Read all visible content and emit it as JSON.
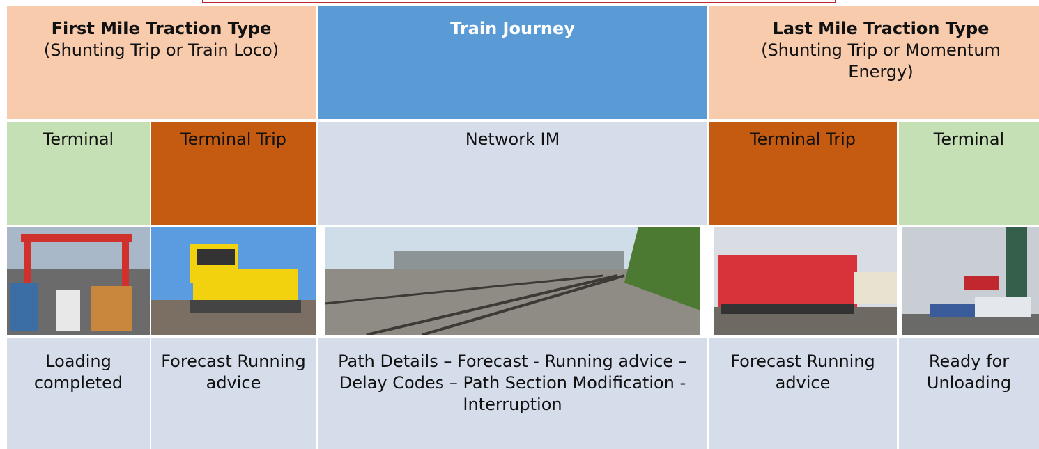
{
  "header": [
    {
      "title": "First Mile Traction Type",
      "subtitle": "(Shunting Trip or Train Loco)"
    },
    {
      "title": "Train Journey"
    },
    {
      "title": "Last Mile Traction Type",
      "subtitle": "(Shunting Trip or Momentum Energy)"
    }
  ],
  "segments": [
    "Terminal",
    "Terminal Trip",
    "Network IM",
    "Terminal Trip",
    "Terminal"
  ],
  "events": [
    "Loading completed",
    "Forecast Running advice",
    "Path Details – Forecast - Running advice – Delay Codes – Path Section Modification - Interruption",
    "Forecast Running advice",
    "Ready for Unloading"
  ]
}
